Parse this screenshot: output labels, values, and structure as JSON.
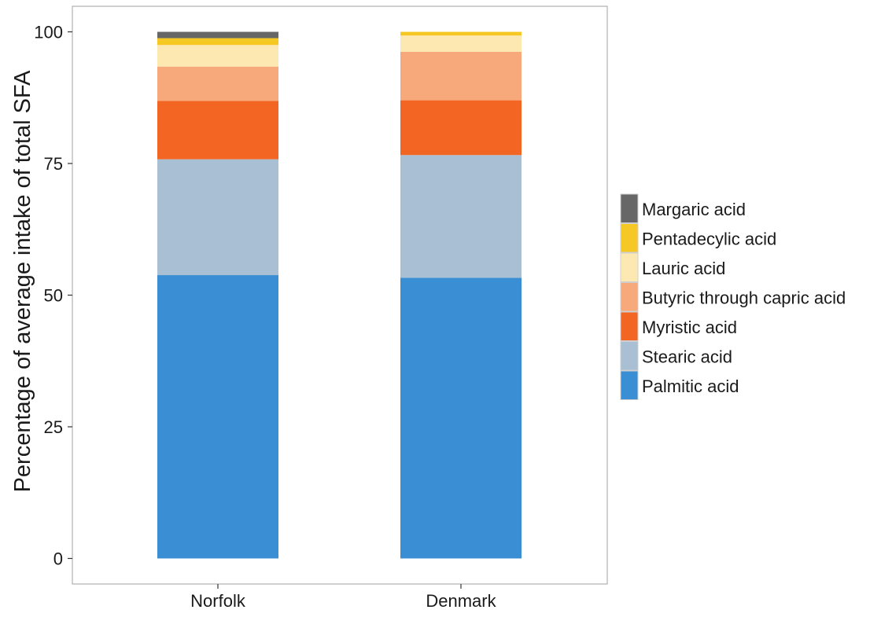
{
  "chart_data": {
    "type": "bar",
    "stacked": true,
    "title": "",
    "xlabel": "",
    "ylabel": "Percentage of average intake of total SFA",
    "ylim": [
      0,
      100
    ],
    "yticks": [
      "0",
      "25",
      "50",
      "75",
      "100"
    ],
    "grid": false,
    "legend_position": "right",
    "categories": [
      "Norfolk",
      "Denmark"
    ],
    "series": [
      {
        "name": "Palmitic acid",
        "color": "#3a8ed3",
        "values": [
          53.8,
          53.3
        ]
      },
      {
        "name": "Stearic acid",
        "color": "#a9bfd4",
        "values": [
          22.0,
          23.3
        ]
      },
      {
        "name": "Myristic acid",
        "color": "#f26522",
        "values": [
          11.1,
          10.4
        ]
      },
      {
        "name": "Butyric through capric acid",
        "color": "#f8a97b",
        "values": [
          6.5,
          9.2
        ]
      },
      {
        "name": "Lauric acid",
        "color": "#fde8b2",
        "values": [
          4.1,
          3.1
        ]
      },
      {
        "name": "Pentadecylic acid",
        "color": "#f6c823",
        "values": [
          1.3,
          0.7
        ]
      },
      {
        "name": "Margaric acid",
        "color": "#676767",
        "values": [
          1.2,
          0.0
        ]
      }
    ],
    "legend_order": [
      "Margaric acid",
      "Pentadecylic acid",
      "Lauric acid",
      "Butyric through capric acid",
      "Myristic acid",
      "Stearic acid",
      "Palmitic acid"
    ]
  }
}
